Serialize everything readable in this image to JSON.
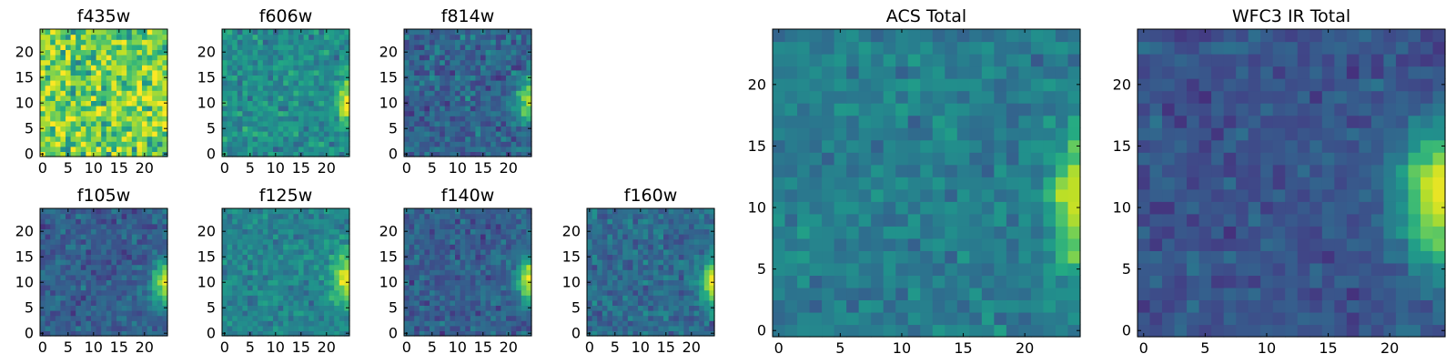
{
  "figure": {
    "panels": [
      {
        "id": "f435w",
        "title": "f435w"
      },
      {
        "id": "f606w",
        "title": "f606w"
      },
      {
        "id": "f814w",
        "title": "f814w"
      },
      {
        "id": "f105w",
        "title": "f105w"
      },
      {
        "id": "f125w",
        "title": "f125w"
      },
      {
        "id": "f140w",
        "title": "f140w"
      },
      {
        "id": "f160w",
        "title": "f160w"
      },
      {
        "id": "acs-total",
        "title": "ACS Total"
      },
      {
        "id": "wfc3-ir-total",
        "title": "WFC3 IR Total"
      }
    ]
  },
  "colors": {
    "colormap": [
      "#440154",
      "#3b528b",
      "#21908d",
      "#5dc863",
      "#fde725"
    ],
    "frame": "#000000"
  },
  "chart_data": [
    {
      "type": "heatmap",
      "title": "f435w",
      "grid_size": 25,
      "xlim": [
        0,
        24
      ],
      "ylim": [
        0,
        24
      ],
      "xticks": [
        0,
        5,
        10,
        15,
        20
      ],
      "yticks": [
        0,
        5,
        10,
        15,
        20
      ],
      "colormap": "viridis",
      "background_level": 0.78,
      "noise": 0.18,
      "blob": {
        "x": 24.5,
        "y": 9.5,
        "sx": 1.2,
        "sy": 3,
        "amp": 0.25
      }
    },
    {
      "type": "heatmap",
      "title": "f606w",
      "grid_size": 25,
      "xlim": [
        0,
        24
      ],
      "ylim": [
        0,
        24
      ],
      "xticks": [
        0,
        5,
        10,
        15,
        20
      ],
      "yticks": [
        0,
        5,
        10,
        15,
        20
      ],
      "colormap": "viridis",
      "background_level": 0.48,
      "noise": 0.1,
      "blob": {
        "x": 24.5,
        "y": 10.5,
        "sx": 1.5,
        "sy": 3,
        "amp": 0.55
      }
    },
    {
      "type": "heatmap",
      "title": "f814w",
      "grid_size": 25,
      "xlim": [
        0,
        24
      ],
      "ylim": [
        0,
        24
      ],
      "xticks": [
        0,
        5,
        10,
        15,
        20
      ],
      "yticks": [
        0,
        5,
        10,
        15,
        20
      ],
      "colormap": "viridis",
      "background_level": 0.32,
      "noise": 0.1,
      "blob": {
        "x": 24.5,
        "y": 10.5,
        "sx": 1.6,
        "sy": 3,
        "amp": 0.68
      }
    },
    {
      "type": "heatmap",
      "title": "f105w",
      "grid_size": 25,
      "xlim": [
        0,
        24
      ],
      "ylim": [
        0,
        24
      ],
      "xticks": [
        0,
        5,
        10,
        15,
        20
      ],
      "yticks": [
        0,
        5,
        10,
        15,
        20
      ],
      "colormap": "viridis",
      "background_level": 0.3,
      "noise": 0.08,
      "blob": {
        "x": 24.5,
        "y": 10,
        "sx": 2,
        "sy": 3,
        "amp": 0.68
      }
    },
    {
      "type": "heatmap",
      "title": "f125w",
      "grid_size": 25,
      "xlim": [
        0,
        24
      ],
      "ylim": [
        0,
        24
      ],
      "xticks": [
        0,
        5,
        10,
        15,
        20
      ],
      "yticks": [
        0,
        5,
        10,
        15,
        20
      ],
      "colormap": "viridis",
      "background_level": 0.45,
      "noise": 0.08,
      "blob": {
        "x": 24.5,
        "y": 11,
        "sx": 2.2,
        "sy": 3.5,
        "amp": 0.55
      }
    },
    {
      "type": "heatmap",
      "title": "f140w",
      "grid_size": 25,
      "xlim": [
        0,
        24
      ],
      "ylim": [
        0,
        24
      ],
      "xticks": [
        0,
        5,
        10,
        15,
        20
      ],
      "yticks": [
        0,
        5,
        10,
        15,
        20
      ],
      "colormap": "viridis",
      "background_level": 0.3,
      "noise": 0.08,
      "blob": {
        "x": 24.5,
        "y": 10.5,
        "sx": 2,
        "sy": 3,
        "amp": 0.68
      }
    },
    {
      "type": "heatmap",
      "title": "f160w",
      "grid_size": 25,
      "xlim": [
        0,
        24
      ],
      "ylim": [
        0,
        24
      ],
      "xticks": [
        0,
        5,
        10,
        15,
        20
      ],
      "yticks": [
        0,
        5,
        10,
        15,
        20
      ],
      "colormap": "viridis",
      "background_level": 0.35,
      "noise": 0.08,
      "blob": {
        "x": 24.5,
        "y": 10,
        "sx": 1.8,
        "sy": 3,
        "amp": 0.62
      }
    },
    {
      "type": "heatmap",
      "title": "ACS Total",
      "grid_size": 25,
      "xlim": [
        0,
        24
      ],
      "ylim": [
        0,
        24
      ],
      "xticks": [
        0,
        5,
        10,
        15,
        20
      ],
      "yticks": [
        0,
        5,
        10,
        15,
        20
      ],
      "colormap": "viridis",
      "background_level": 0.42,
      "noise": 0.07,
      "blob": {
        "x": 24.5,
        "y": 10.5,
        "sx": 1.5,
        "sy": 3.5,
        "amp": 0.58
      }
    },
    {
      "type": "heatmap",
      "title": "WFC3 IR Total",
      "grid_size": 25,
      "xlim": [
        0,
        24
      ],
      "ylim": [
        0,
        24
      ],
      "xticks": [
        0,
        5,
        10,
        15,
        20
      ],
      "yticks": [
        0,
        5,
        10,
        15,
        20
      ],
      "colormap": "viridis",
      "background_level": 0.26,
      "noise": 0.06,
      "blob": {
        "x": 24.5,
        "y": 11,
        "sx": 2.5,
        "sy": 4,
        "amp": 0.74
      }
    }
  ]
}
